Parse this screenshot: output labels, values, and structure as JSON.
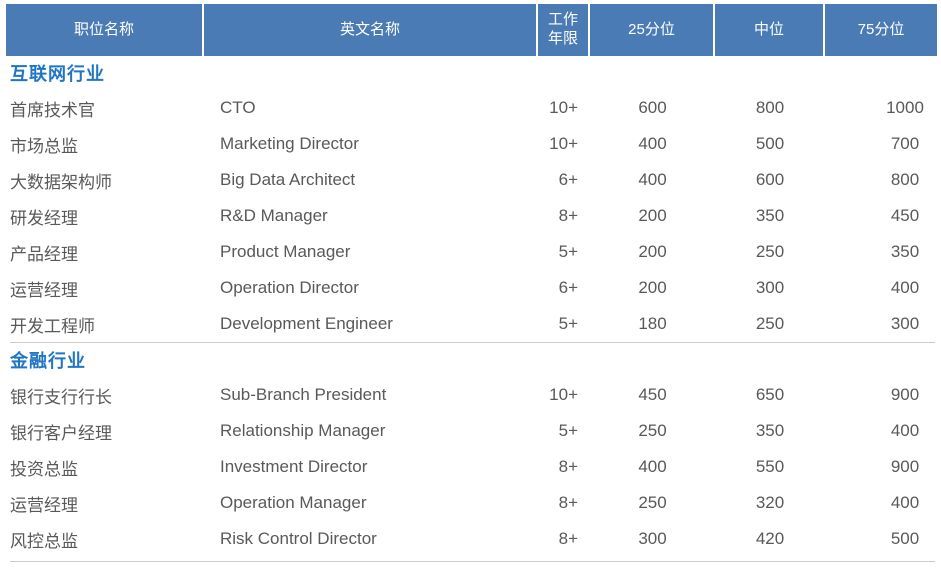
{
  "table": {
    "header": {
      "position": "职位名称",
      "english": "英文名称",
      "years": "工作年限",
      "p25": "25分位",
      "median": "中位",
      "p75": "75分位"
    },
    "sections": [
      {
        "title": "互联网行业",
        "rows": [
          {
            "position": "首席技术官",
            "english": "CTO",
            "years": "10+",
            "p25": "600",
            "median": "800",
            "p75": "1000"
          },
          {
            "position": "市场总监",
            "english": "Marketing Director",
            "years": "10+",
            "p25": "400",
            "median": "500",
            "p75": "700"
          },
          {
            "position": "大数据架构师",
            "english": "Big Data Architect",
            "years": "6+",
            "p25": "400",
            "median": "600",
            "p75": "800"
          },
          {
            "position": "研发经理",
            "english": "R&D Manager",
            "years": "8+",
            "p25": "200",
            "median": "350",
            "p75": "450"
          },
          {
            "position": "产品经理",
            "english": "Product Manager",
            "years": "5+",
            "p25": "200",
            "median": "250",
            "p75": "350"
          },
          {
            "position": "运营经理",
            "english": "Operation Director",
            "years": "6+",
            "p25": "200",
            "median": "300",
            "p75": "400"
          },
          {
            "position": "开发工程师",
            "english": "Development Engineer",
            "years": "5+",
            "p25": "180",
            "median": "250",
            "p75": "300"
          }
        ]
      },
      {
        "title": "金融行业",
        "rows": [
          {
            "position": "银行支行行长",
            "english": "Sub-Branch President",
            "years": "10+",
            "p25": "450",
            "median": "650",
            "p75": "900"
          },
          {
            "position": "银行客户经理",
            "english": "Relationship Manager",
            "years": "5+",
            "p25": "250",
            "median": "350",
            "p75": "400"
          },
          {
            "position": "投资总监",
            "english": "Investment Director",
            "years": "8+",
            "p25": "400",
            "median": "550",
            "p75": "900"
          },
          {
            "position": "运营经理",
            "english": "Operation Manager",
            "years": "8+",
            "p25": "250",
            "median": "320",
            "p75": "400"
          },
          {
            "position": "风控总监",
            "english": "Risk Control Director",
            "years": "8+",
            "p25": "300",
            "median": "420",
            "p75": "500"
          }
        ]
      }
    ],
    "colors": {
      "header_bg": "#4b7bb5",
      "section_title_text": "#2076c4",
      "body_text": "#595959",
      "divider": "#cbcbcb"
    }
  }
}
